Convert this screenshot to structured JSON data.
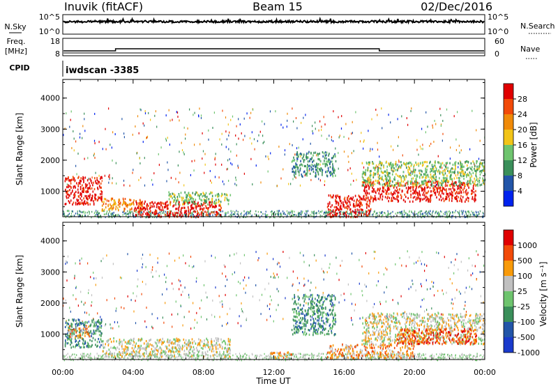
{
  "header": {
    "station": "Inuvik (fitACF)",
    "beam": "Beam 15",
    "date": "02/Dec/2016"
  },
  "noise_panel": {
    "left_label": "N.Sky",
    "right_label": "N.Search",
    "top_tick": "10^5",
    "bottom_tick": "10^0"
  },
  "freq_panel": {
    "left_label_1": "Freq.",
    "left_label_2": "[MHz]",
    "left_tick_top": "18",
    "left_tick_bottom": "8",
    "right_label": "Nave",
    "right_tick_top": "60",
    "right_tick_bottom": "0"
  },
  "cpid_panel": {
    "label": "CPID",
    "value": "iwdscan -3385"
  },
  "colors": {
    "power": [
      "#0022ee",
      "#2255a8",
      "#3a8f5a",
      "#6ec46e",
      "#f2c418",
      "#f08a08",
      "#f24a08",
      "#e00000"
    ],
    "velocity": [
      "#e00000",
      "#f24a08",
      "#f89a0a",
      "#c0c0c0",
      "#6ec46e",
      "#3a8f5a",
      "#2255a8",
      "#1a3acc"
    ]
  },
  "chart_data": [
    {
      "type": "heatmap",
      "name": "power",
      "ylabel": "Slant Range [km]",
      "xlabel": "Time UT",
      "ylim": [
        180,
        4600
      ],
      "xlim": [
        0,
        24
      ],
      "y_ticks": [
        "1000",
        "2000",
        "3000",
        "4000"
      ],
      "colorbar_label": "Power [dB]",
      "colorbar_ticks": [
        "4",
        "8",
        "12",
        "16",
        "20",
        "24",
        "28"
      ],
      "colorbar_range": [
        0,
        32
      ],
      "regions": [
        {
          "t0": 0.1,
          "t1": 2.2,
          "r0": 600,
          "r1": 1500,
          "level": 7
        },
        {
          "t0": 2.2,
          "t1": 4.5,
          "r0": 400,
          "r1": 800,
          "level": 5
        },
        {
          "t0": 4.0,
          "t1": 9.0,
          "r0": 200,
          "r1": 700,
          "level": 7
        },
        {
          "t0": 6.0,
          "t1": 9.5,
          "r0": 600,
          "r1": 1000,
          "level": 3
        },
        {
          "t0": 15.0,
          "t1": 17.5,
          "r0": 200,
          "r1": 900,
          "level": 7
        },
        {
          "t0": 17.0,
          "t1": 23.5,
          "r0": 700,
          "r1": 1350,
          "level": 7
        },
        {
          "t0": 17.0,
          "t1": 24.0,
          "r0": 1200,
          "r1": 2000,
          "level": 3
        },
        {
          "t0": 13.0,
          "t1": 15.5,
          "r0": 1500,
          "r1": 2300,
          "level": 2
        }
      ]
    },
    {
      "type": "heatmap",
      "name": "velocity",
      "ylabel": "Slant Range [km]",
      "xlabel": "Time UT",
      "ylim": [
        180,
        4600
      ],
      "xlim": [
        0,
        24
      ],
      "y_ticks": [
        "1000",
        "2000",
        "3000",
        "4000"
      ],
      "x_ticks": [
        "00:00",
        "04:00",
        "08:00",
        "12:00",
        "16:00",
        "20:00",
        "00:00"
      ],
      "colorbar_label": "Velocity [m s⁻¹]",
      "colorbar_ticks": [
        "1000",
        "500",
        "100",
        "25",
        "-25",
        "-100",
        "-500",
        "-1000"
      ],
      "regions": [
        {
          "t0": 0.1,
          "t1": 2.2,
          "r0": 600,
          "r1": 1500,
          "level": 5
        },
        {
          "t0": 0.3,
          "t1": 1.5,
          "r0": 900,
          "r1": 1300,
          "level": 2
        },
        {
          "t0": 2.2,
          "t1": 9.5,
          "r0": 300,
          "r1": 900,
          "level": 3
        },
        {
          "t0": 11.8,
          "t1": 13.0,
          "r0": 250,
          "r1": 450,
          "level": 2
        },
        {
          "t0": 15.0,
          "t1": 20.0,
          "r0": 250,
          "r1": 700,
          "level": 2
        },
        {
          "t0": 17.0,
          "t1": 24.0,
          "r0": 700,
          "r1": 1700,
          "level": 3
        },
        {
          "t0": 19.0,
          "t1": 23.5,
          "r0": 700,
          "r1": 1200,
          "level": 1
        },
        {
          "t0": 13.0,
          "t1": 15.5,
          "r0": 1000,
          "r1": 2300,
          "level": 5
        }
      ]
    }
  ]
}
